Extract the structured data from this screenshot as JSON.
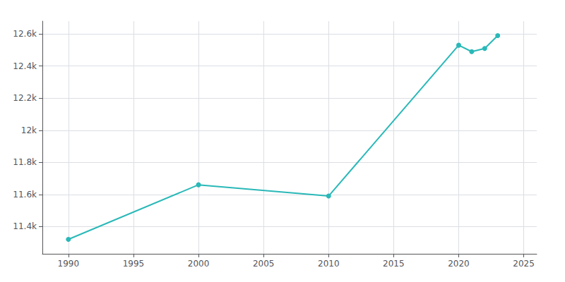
{
  "chart_data": {
    "type": "line",
    "x": [
      1990,
      2000,
      2010,
      2020,
      2021,
      2022,
      2023
    ],
    "values": [
      11320,
      11660,
      11590,
      12530,
      12490,
      12510,
      12590
    ],
    "color": "#2ab8b8",
    "marker": "circle",
    "xlim": [
      1988,
      2026
    ],
    "xticks": [
      1990,
      1995,
      2000,
      2005,
      2010,
      2015,
      2020,
      2025
    ],
    "ylim": [
      11230,
      12680
    ],
    "yticks": [
      {
        "value": 11400,
        "label": "11.4k"
      },
      {
        "value": 11600,
        "label": "11.6k"
      },
      {
        "value": 11800,
        "label": "11.8k"
      },
      {
        "value": 12000,
        "label": "12k"
      },
      {
        "value": 12200,
        "label": "12.2k"
      },
      {
        "value": 12400,
        "label": "12.4k"
      },
      {
        "value": 12600,
        "label": "12.6k"
      }
    ],
    "grid": true
  }
}
